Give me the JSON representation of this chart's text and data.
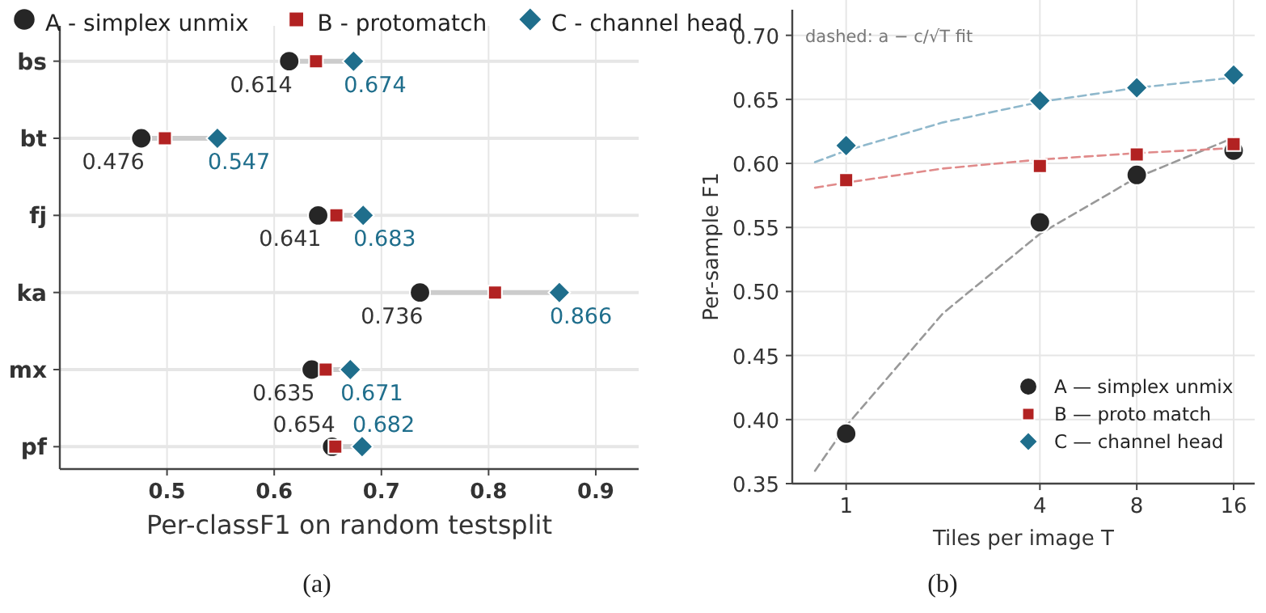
{
  "chart_data": [
    {
      "type": "scatter",
      "orientation": "horizontal",
      "categories": [
        "bs",
        "bt",
        "fj",
        "ka",
        "mx",
        "pf"
      ],
      "xlabel": "Per-classF1 on random testsplit",
      "xlim": [
        0.4,
        0.94
      ],
      "xticks": [
        0.5,
        0.6,
        0.7,
        0.8,
        0.9
      ],
      "grid": true,
      "legend": "top",
      "annotations": [
        "(a)"
      ],
      "series": [
        {
          "name": "A - simplex unmix",
          "color": "#262626",
          "marker": "circle",
          "values": [
            0.614,
            0.476,
            0.641,
            0.736,
            0.635,
            0.654
          ],
          "value_labels": [
            "0.614",
            "0.476",
            "0.641",
            "0.736",
            "0.635",
            "0.654"
          ]
        },
        {
          "name": "B - protomatch",
          "color": "#b22222",
          "marker": "square",
          "values": [
            0.639,
            0.498,
            0.658,
            0.806,
            0.648,
            0.657
          ]
        },
        {
          "name": "C - channel head",
          "color": "#1f6e8c",
          "marker": "diamond",
          "values": [
            0.674,
            0.547,
            0.683,
            0.866,
            0.671,
            0.682
          ],
          "value_labels": [
            "0.674",
            "0.547",
            "0.683",
            "0.866",
            "0.671",
            "0.682"
          ]
        }
      ]
    },
    {
      "type": "scatter",
      "log": "x",
      "x": [
        1,
        4,
        8,
        16
      ],
      "xlabel": "Tiles per image T",
      "ylabel": "Per-sample F1",
      "xlim": [
        0.68,
        18.6
      ],
      "xticks": [
        1,
        4,
        8,
        16
      ],
      "ylim": [
        0.35,
        0.72
      ],
      "yticks": [
        {
          "value": 0.35,
          "label": "0.35"
        },
        {
          "value": 0.4,
          "label": "0.40"
        },
        {
          "value": 0.45,
          "label": "0.45"
        },
        {
          "value": 0.5,
          "label": "0.50"
        },
        {
          "value": 0.55,
          "label": "0.55"
        },
        {
          "value": 0.6,
          "label": "0.60"
        },
        {
          "value": 0.65,
          "label": "0.65"
        },
        {
          "value": 0.7,
          "label": "0.70"
        }
      ],
      "grid": true,
      "legend": "bottom right",
      "annotations": [
        "dashed: a − c/√T fit",
        "(b)"
      ],
      "series": [
        {
          "type": "line",
          "color": "#999999",
          "line_style": "dashed",
          "marker": "none",
          "x": [
            0.8,
            1,
            2,
            4,
            8,
            16
          ],
          "values": [
            0.36,
            0.395,
            0.483,
            0.545,
            0.589,
            0.62
          ]
        },
        {
          "type": "line",
          "color": "#e08a8a",
          "line_style": "dashed",
          "marker": "none",
          "x": [
            0.8,
            1,
            2,
            4,
            8,
            16
          ],
          "values": [
            0.581,
            0.585,
            0.596,
            0.603,
            0.608,
            0.612
          ]
        },
        {
          "type": "line",
          "color": "#8fb8cc",
          "line_style": "dashed",
          "marker": "none",
          "x": [
            0.8,
            1,
            2,
            4,
            8,
            16
          ],
          "values": [
            0.601,
            0.61,
            0.632,
            0.648,
            0.659,
            0.667
          ]
        },
        {
          "name": "A — simplex unmix",
          "color": "#262626",
          "marker": "circle",
          "values": [
            0.389,
            0.554,
            0.591,
            0.61
          ]
        },
        {
          "name": "B — proto match",
          "color": "#b22222",
          "marker": "square",
          "values": [
            0.587,
            0.598,
            0.607,
            0.615
          ]
        },
        {
          "name": "C — channel head",
          "color": "#1f6e8c",
          "marker": "diamond",
          "values": [
            0.614,
            0.649,
            0.659,
            0.669
          ]
        }
      ]
    }
  ]
}
